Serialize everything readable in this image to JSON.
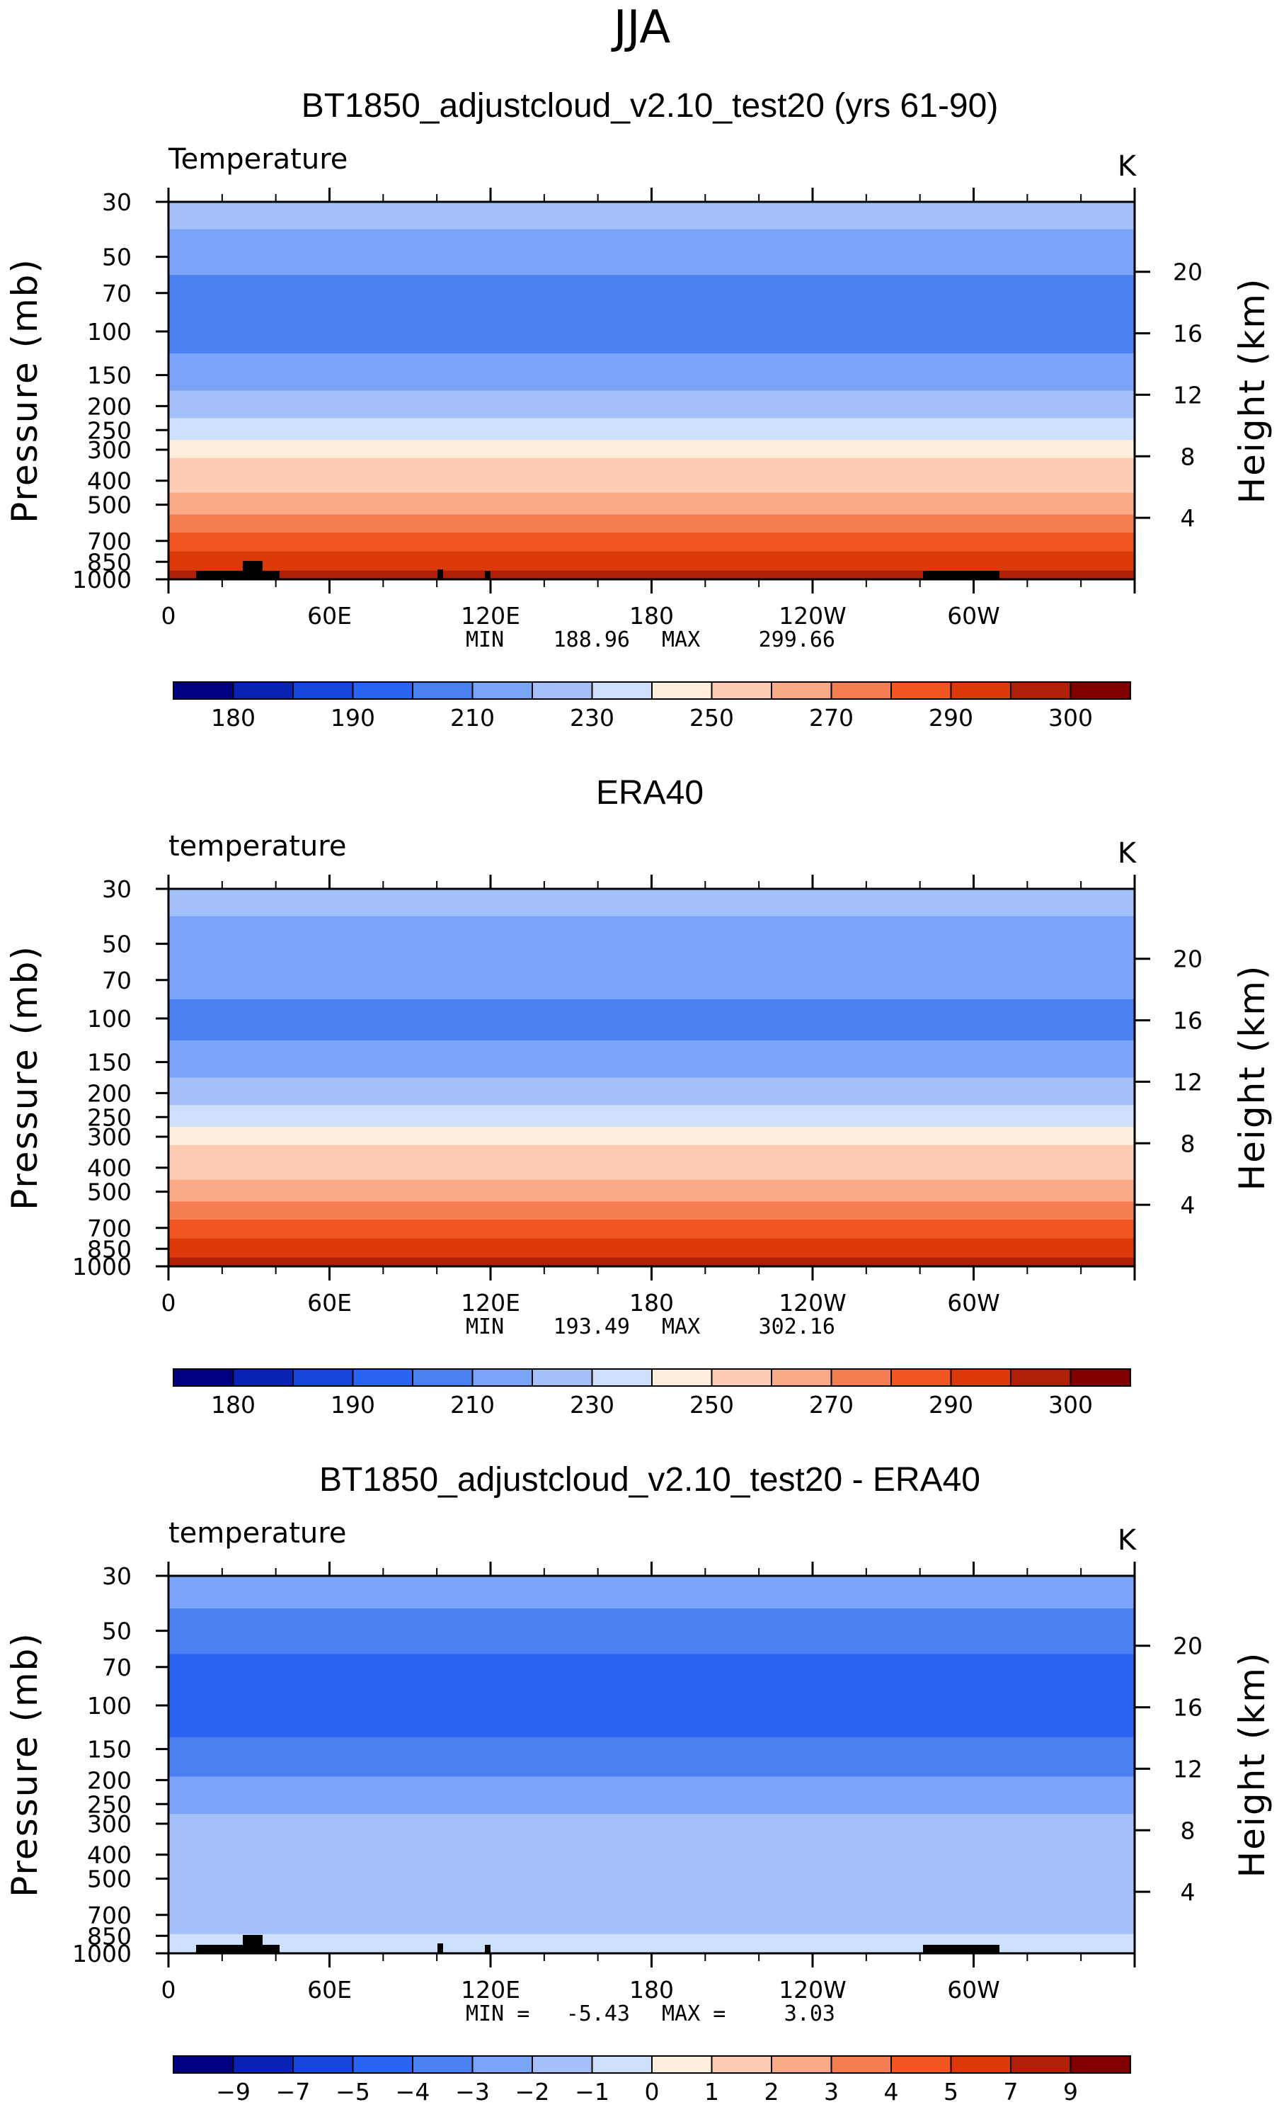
{
  "figure": {
    "season": "JJA"
  },
  "chart_data": [
    {
      "type": "heatmap",
      "title": "BT1850_adjustcloud_v2.10_test20 (yrs 61-90)",
      "variable_label": "Temperature",
      "units": "K",
      "xlabel": "",
      "ylabel": "Pressure (mb)",
      "ylabel_right": "Height (km)",
      "x_ticks": [
        "0",
        "60E",
        "120E",
        "180",
        "120W",
        "60W"
      ],
      "y_ticks": [
        "30",
        "50",
        "70",
        "100",
        "150",
        "200",
        "250",
        "300",
        "400",
        "500",
        "700",
        "850",
        "1000"
      ],
      "height_ticks": [
        "20",
        "16",
        "12",
        "8",
        "4"
      ],
      "ylim": [
        1000,
        30
      ],
      "min_label": "MIN",
      "min": "188.96",
      "max_label": "MAX",
      "max": "299.66",
      "colorbar_labels": [
        "180",
        "190",
        "210",
        "230",
        "250",
        "270",
        "290",
        "300"
      ],
      "layers": [
        {
          "p": 30,
          "value": 220
        },
        {
          "p": 50,
          "value": 215
        },
        {
          "p": 70,
          "value": 205
        },
        {
          "p": 100,
          "value": 200
        },
        {
          "p": 150,
          "value": 210
        },
        {
          "p": 200,
          "value": 220
        },
        {
          "p": 250,
          "value": 230
        },
        {
          "p": 300,
          "value": 240
        },
        {
          "p": 350,
          "value": 250
        },
        {
          "p": 400,
          "value": 255
        },
        {
          "p": 500,
          "value": 265
        },
        {
          "p": 600,
          "value": 270
        },
        {
          "p": 700,
          "value": 280
        },
        {
          "p": 850,
          "value": 290
        },
        {
          "p": 1000,
          "value": 295
        }
      ]
    },
    {
      "type": "heatmap",
      "title": "ERA40",
      "variable_label": "temperature",
      "units": "K",
      "xlabel": "",
      "ylabel": "Pressure (mb)",
      "ylabel_right": "Height (km)",
      "x_ticks": [
        "0",
        "60E",
        "120E",
        "180",
        "120W",
        "60W"
      ],
      "y_ticks": [
        "30",
        "50",
        "70",
        "100",
        "150",
        "200",
        "250",
        "300",
        "400",
        "500",
        "700",
        "850",
        "1000"
      ],
      "height_ticks": [
        "20",
        "16",
        "12",
        "8",
        "4"
      ],
      "ylim": [
        1000,
        30
      ],
      "min_label": "MIN",
      "min": "193.49",
      "max_label": "MAX",
      "max": "302.16",
      "colorbar_labels": [
        "180",
        "190",
        "210",
        "230",
        "250",
        "270",
        "290",
        "300"
      ],
      "layers": [
        {
          "p": 30,
          "value": 220
        },
        {
          "p": 50,
          "value": 215
        },
        {
          "p": 70,
          "value": 210
        },
        {
          "p": 100,
          "value": 205
        },
        {
          "p": 150,
          "value": 210
        },
        {
          "p": 200,
          "value": 220
        },
        {
          "p": 250,
          "value": 230
        },
        {
          "p": 300,
          "value": 240
        },
        {
          "p": 350,
          "value": 250
        },
        {
          "p": 400,
          "value": 255
        },
        {
          "p": 500,
          "value": 265
        },
        {
          "p": 600,
          "value": 270
        },
        {
          "p": 700,
          "value": 280
        },
        {
          "p": 850,
          "value": 290
        },
        {
          "p": 1000,
          "value": 295
        }
      ]
    },
    {
      "type": "heatmap",
      "title": "BT1850_adjustcloud_v2.10_test20 - ERA40",
      "variable_label": "temperature",
      "units": "K",
      "xlabel": "",
      "ylabel": "Pressure (mb)",
      "ylabel_right": "Height (km)",
      "x_ticks": [
        "0",
        "60E",
        "120E",
        "180",
        "120W",
        "60W"
      ],
      "y_ticks": [
        "30",
        "50",
        "70",
        "100",
        "150",
        "200",
        "250",
        "300",
        "400",
        "500",
        "700",
        "850",
        "1000"
      ],
      "height_ticks": [
        "20",
        "16",
        "12",
        "8",
        "4"
      ],
      "ylim": [
        1000,
        30
      ],
      "min_label": "MIN =",
      "min": "-5.43",
      "max_label": "MAX =",
      "max": "3.03",
      "colorbar_labels": [
        "−9",
        "−7",
        "−5",
        "−4",
        "−3",
        "−2",
        "−1",
        "0",
        "1",
        "2",
        "3",
        "4",
        "5",
        "7",
        "9"
      ],
      "layers": [
        {
          "p": 30,
          "value": -2.5
        },
        {
          "p": 55,
          "value": -3.5
        },
        {
          "p": 70,
          "value": -4.5
        },
        {
          "p": 120,
          "value": -4.5
        },
        {
          "p": 150,
          "value": -3.5
        },
        {
          "p": 250,
          "value": -2.5
        },
        {
          "p": 300,
          "value": -1.5
        },
        {
          "p": 700,
          "value": -1.5
        },
        {
          "p": 1000,
          "value": -0.5
        }
      ]
    }
  ],
  "colors": {
    "temp_levels": [
      "#000080",
      "#0a23b4",
      "#1545dc",
      "#2a64f2",
      "#4a80f2",
      "#7aa4f8",
      "#a4c0f8",
      "#cce0fc",
      "#ffeede",
      "#fdccb4",
      "#fbaa88",
      "#f57d52",
      "#f15522",
      "#dd3a0c",
      "#b02008",
      "#800000"
    ],
    "diff_levels": [
      "#000080",
      "#0a23b4",
      "#1545dc",
      "#2a64f2",
      "#4a80f2",
      "#7aa4f8",
      "#a4c0f8",
      "#cce0fc",
      "#ffeede",
      "#fdccb4",
      "#fbaa88",
      "#f57d52",
      "#f15522",
      "#dd3a0c",
      "#b02008",
      "#800000"
    ],
    "topography": "#000000",
    "axis": "#000000"
  }
}
